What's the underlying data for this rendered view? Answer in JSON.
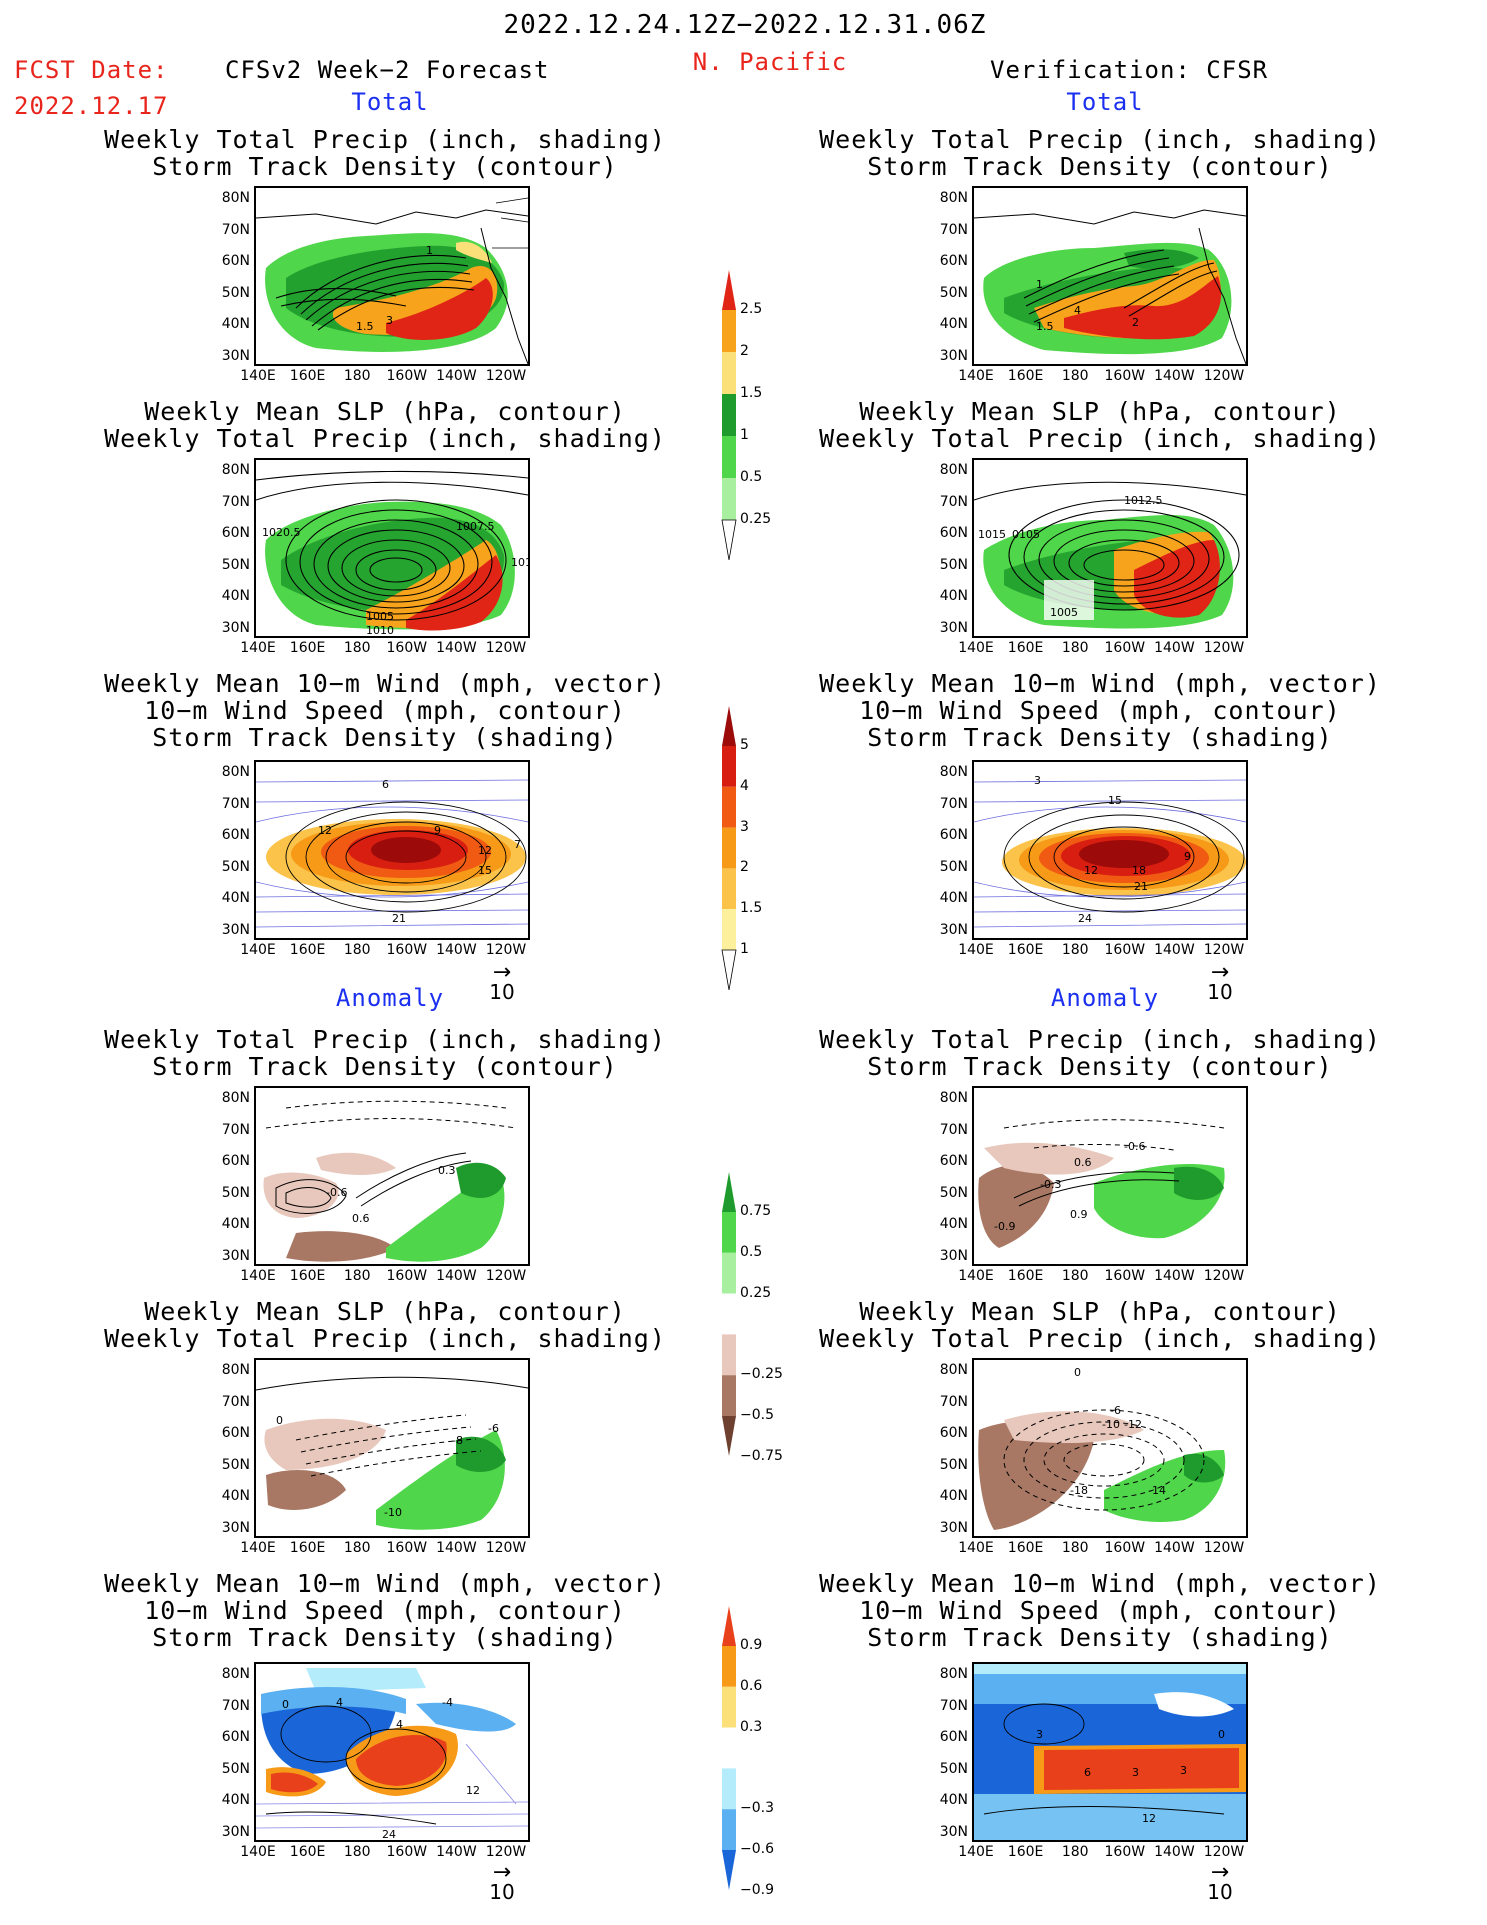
{
  "header": {
    "date_range": "2022.12.24.12Z−2022.12.31.06Z",
    "fcst_date_label": "FCST Date:",
    "fcst_date_value": "2022.12.17",
    "forecast_title": "CFSv2 Week−2 Forecast",
    "region": "N. Pacific",
    "verification_title": "Verification: CFSR"
  },
  "section_labels": {
    "total": "Total",
    "anomaly": "Anomaly"
  },
  "panel_titles": {
    "precip_storm": "Weekly Total Precip (inch, shading)\nStorm Track Density (contour)",
    "slp_precip": "Weekly Mean SLP (hPa, contour)\nWeekly Total Precip (inch, shading)",
    "wind_storm": "Weekly Mean 10−m Wind (mph, vector)\n10−m Wind Speed (mph, contour)\nStorm Track Density (shading)"
  },
  "axes": {
    "lat_labels": [
      "80N",
      "70N",
      "60N",
      "50N",
      "40N",
      "30N"
    ],
    "lon_labels": [
      "140E",
      "160E",
      "180",
      "160W",
      "140W",
      "120W"
    ]
  },
  "vector_reference": "10",
  "contour_labels": {
    "fc_total_precip": [
      "1",
      "1.5",
      "3"
    ],
    "vf_total_precip": [
      "1",
      "1.5",
      "4",
      "2"
    ],
    "fc_total_slp": [
      "1020.5",
      "1007.5",
      "101",
      "1005",
      "1010"
    ],
    "vf_total_slp": [
      "1012.5",
      "1015",
      "0105",
      "1005"
    ],
    "fc_total_wind": [
      "6",
      "12",
      "9",
      "12",
      "15",
      "21",
      "7"
    ],
    "vf_total_wind": [
      "3",
      "15",
      "9",
      "12",
      "18",
      "21",
      "24"
    ],
    "fc_anom_precip": [
      "-0.6",
      "0.6",
      "0.3"
    ],
    "vf_anom_precip": [
      "-0.6",
      "0.6",
      "-0.3",
      "0.9",
      "-0.9"
    ],
    "fc_anom_slp": [
      "0",
      "-8",
      "-6",
      "-10"
    ],
    "vf_anom_slp": [
      "0",
      "-6",
      "-10",
      "-12",
      "-18",
      "-14"
    ],
    "fc_anom_wind": [
      "0",
      "4",
      "4",
      "-4",
      "12",
      "24"
    ],
    "vf_anom_wind": [
      "3",
      "0",
      "6",
      "3",
      "3",
      "12"
    ]
  },
  "colorbars": {
    "total_precip": {
      "labels": [
        "2.5",
        "2",
        "1.5",
        "1",
        "0.5",
        "0.25"
      ],
      "colors": [
        "#e02516",
        "#f7a31b",
        "#fbe07a",
        "#1e9b2c",
        "#4fd64a",
        "#a8f0a0"
      ]
    },
    "total_storm": {
      "labels": [
        "5",
        "4",
        "3",
        "2",
        "1.5",
        "1"
      ],
      "colors": [
        "#9c0a0a",
        "#d81e10",
        "#f05a12",
        "#f79a18",
        "#fbc34a",
        "#fdf09c"
      ]
    },
    "anom_precip": {
      "labels": [
        "0.75",
        "0.5",
        "0.25",
        "−0.25",
        "−0.5",
        "−0.75"
      ],
      "colors": [
        "#1e9b2c",
        "#4fd64a",
        "#a8f0a0",
        "#ffffff",
        "#e8c8bc",
        "#a87864",
        "#6e4030"
      ]
    },
    "anom_storm": {
      "labels": [
        "0.9",
        "0.6",
        "0.3",
        "−0.3",
        "−0.6",
        "−0.9"
      ],
      "colors": [
        "#e8401a",
        "#f79a18",
        "#fbe07a",
        "#ffffff",
        "#b4ecfb",
        "#5ab0f0",
        "#1a66d8"
      ]
    }
  }
}
